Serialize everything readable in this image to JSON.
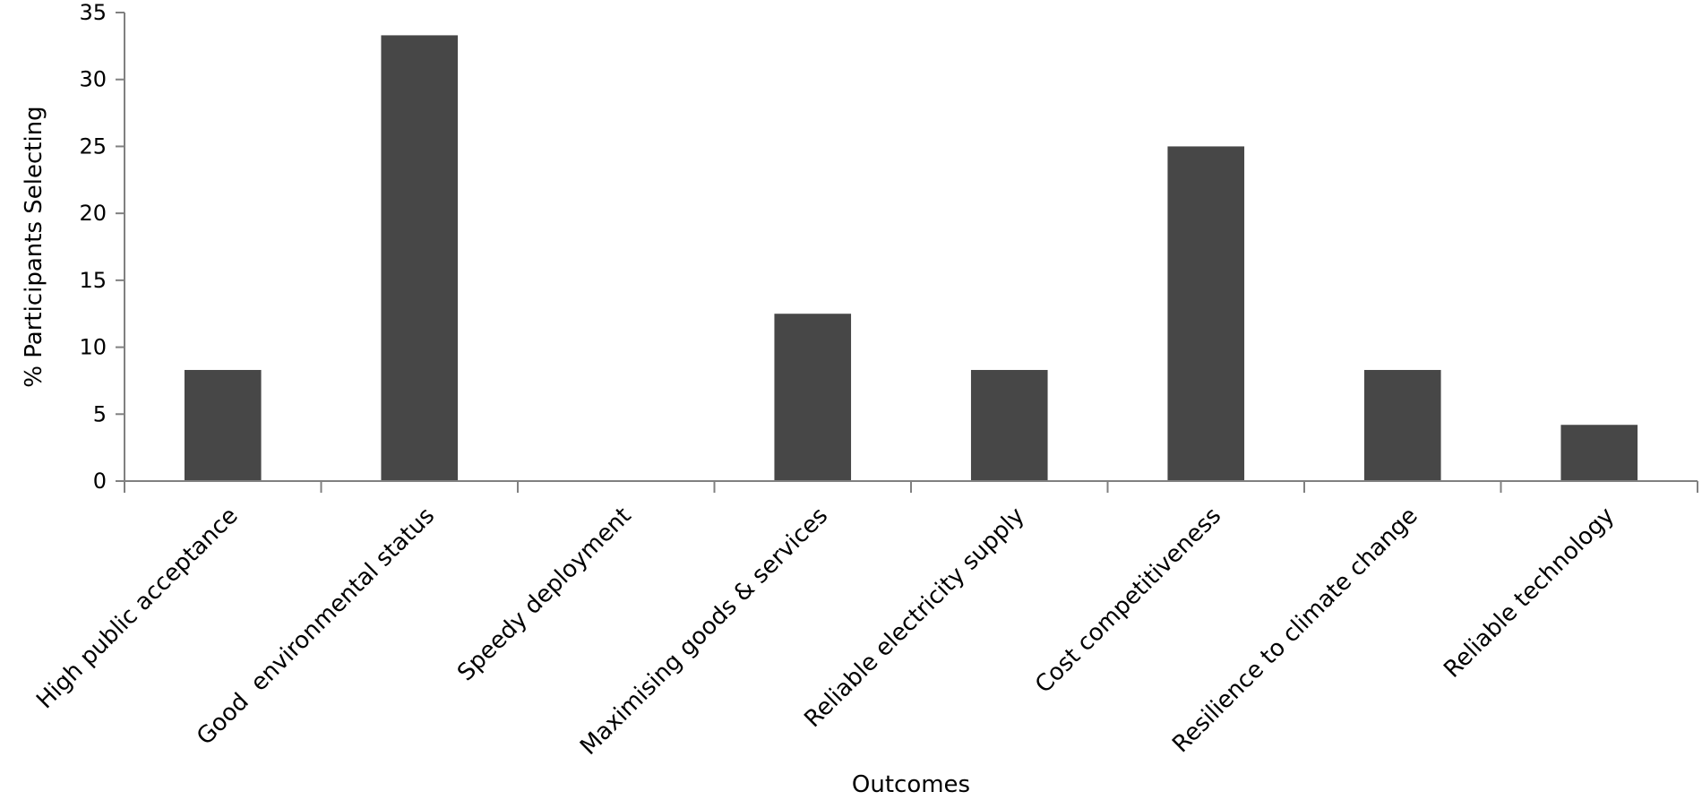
{
  "chart_data": {
    "type": "bar",
    "title": "",
    "xlabel": "Outcomes",
    "ylabel": "% Participants Selecting",
    "ylim": [
      0,
      35
    ],
    "yticks": [
      0,
      5,
      10,
      15,
      20,
      25,
      30,
      35
    ],
    "grid": false,
    "legend": "none",
    "bar_color": "#474747",
    "axis_color": "#808080",
    "categories": [
      "High public acceptance",
      "Good  environmental status",
      "Speedy deployment",
      "Maximising goods & services",
      "Reliable electricity supply",
      "Cost competitiveness",
      "Resilience to climate change",
      "Reliable technology"
    ],
    "values": [
      8.3,
      33.3,
      0,
      12.5,
      8.3,
      25.0,
      8.3,
      4.2
    ]
  }
}
